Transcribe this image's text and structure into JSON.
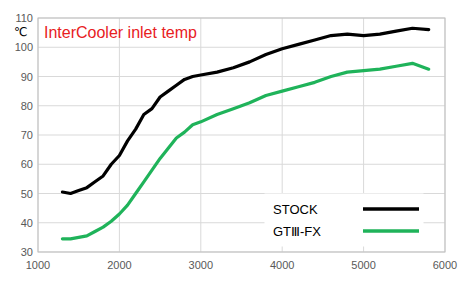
{
  "chart_data": {
    "type": "line",
    "title": "InterCooler inlet temp",
    "y_label": "℃",
    "x": [
      1300,
      1400,
      1500,
      1600,
      1700,
      1800,
      1900,
      2000,
      2100,
      2200,
      2300,
      2400,
      2500,
      2600,
      2700,
      2800,
      2900,
      3000,
      3200,
      3400,
      3600,
      3800,
      4000,
      4200,
      4400,
      4600,
      4800,
      5000,
      5200,
      5400,
      5600,
      5800
    ],
    "series": [
      {
        "name": "STOCK",
        "color": "#000000",
        "values": [
          50.5,
          50,
          51,
          52,
          54,
          56,
          60,
          63,
          68,
          72,
          77,
          79,
          83,
          85,
          87,
          89,
          90,
          90.5,
          91.5,
          93,
          95,
          97.5,
          99.5,
          101,
          102.5,
          104,
          104.5,
          104,
          104.5,
          105.5,
          106.5,
          106
        ]
      },
      {
        "name": "GTⅢ-FX",
        "color": "#1fb35a",
        "values": [
          34.5,
          34.5,
          35,
          35.5,
          37,
          38.5,
          40.5,
          43,
          46,
          50,
          54,
          58,
          62,
          65.5,
          69,
          71,
          73.5,
          74.5,
          77,
          79,
          81,
          83.5,
          85,
          86.5,
          88,
          90,
          91.5,
          92,
          92.5,
          93.5,
          94.5,
          92.5
        ]
      }
    ],
    "xlim": [
      1000,
      6000
    ],
    "xticks": [
      1000,
      2000,
      3000,
      4000,
      5000,
      6000
    ],
    "ylim": [
      30,
      110
    ],
    "yticks": [
      30,
      40,
      50,
      60,
      70,
      80,
      90,
      100,
      110
    ],
    "grid": true,
    "legend": "lower-right"
  }
}
